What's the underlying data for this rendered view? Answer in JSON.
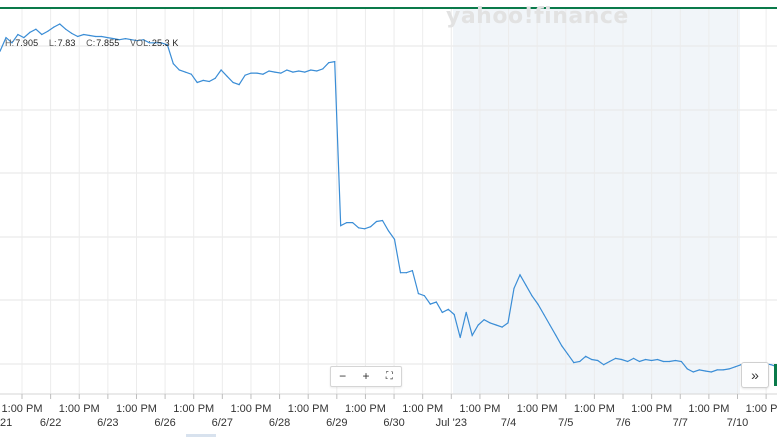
{
  "ohlc": {
    "h_label": "H:",
    "h_value": "7.905",
    "l_label": "L:",
    "l_value": "7.83",
    "c_label": "C:",
    "c_value": "7.855",
    "vol_label": "VOL:",
    "vol_value": "25.3 K"
  },
  "watermark": "yahoo!finance",
  "controls": {
    "zoom_out": "−",
    "zoom_in": "+",
    "fullscreen": "⛶",
    "forward": "»"
  },
  "colors": {
    "line": "#3a8dd6",
    "shade": "#f1f5f9",
    "grid": "#e6e6e6",
    "top_border": "#0a7a4a"
  },
  "chart_data": {
    "type": "line",
    "title": "",
    "xlabel": "",
    "ylabel": "",
    "grid": true,
    "x_tick_labels": [
      "1:00 PM",
      "6/22",
      "1:00 PM",
      "6/23",
      "1:00 PM",
      "6/26",
      "1:00 PM",
      "6/27",
      "1:00 PM",
      "6/28",
      "1:00 PM",
      "6/29",
      "1:00 PM",
      "6/30",
      "1:00 PM",
      "Jul '23",
      "1:00 PM",
      "7/4",
      "1:00 PM",
      "7/5",
      "1:00 PM",
      "7/6",
      "1:00 PM",
      "7/7",
      "1:00 PM",
      "7/10",
      "1:00 PM"
    ],
    "left_cut_label": "21",
    "shaded_region": {
      "from_label": "Jul '23",
      "to_label": "7/10"
    },
    "series": [
      {
        "values": [
          7.72,
          7.85,
          7.8,
          7.88,
          7.85,
          7.9,
          7.93,
          7.88,
          7.91,
          7.95,
          7.98,
          7.93,
          7.89,
          7.86,
          7.88,
          7.87,
          7.86,
          7.86,
          7.85,
          7.84,
          7.83,
          7.84,
          7.83,
          7.82,
          7.83,
          7.8,
          7.8,
          7.8,
          7.78,
          7.6,
          7.54,
          7.52,
          7.5,
          7.42,
          7.44,
          7.43,
          7.46,
          7.54,
          7.48,
          7.42,
          7.4,
          7.49,
          7.51,
          7.51,
          7.5,
          7.53,
          7.52,
          7.51,
          7.54,
          7.52,
          7.53,
          7.52,
          7.54,
          7.53,
          7.55,
          7.61,
          7.62,
          6.05,
          6.08,
          6.08,
          6.03,
          6.02,
          6.04,
          6.09,
          6.1,
          6.0,
          5.92,
          5.6,
          5.6,
          5.62,
          5.4,
          5.38,
          5.3,
          5.32,
          5.22,
          5.25,
          5.2,
          4.98,
          5.22,
          5.0,
          5.1,
          5.15,
          5.12,
          5.1,
          5.08,
          5.12,
          5.45,
          5.58,
          5.48,
          5.38,
          5.3,
          5.2,
          5.1,
          5.0,
          4.9,
          4.82,
          4.74,
          4.75,
          4.8,
          4.77,
          4.76,
          4.72,
          4.75,
          4.78,
          4.77,
          4.75,
          4.78,
          4.75,
          4.77,
          4.76,
          4.77,
          4.75,
          4.75,
          4.76,
          4.75,
          4.68,
          4.65,
          4.67,
          4.66,
          4.65,
          4.67,
          4.67,
          4.68,
          4.7,
          4.72,
          4.73,
          4.72,
          4.7,
          4.73,
          4.72,
          4.7
        ]
      }
    ]
  }
}
